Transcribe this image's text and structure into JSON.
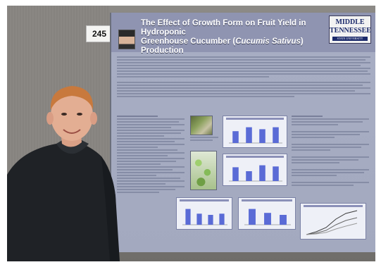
{
  "poster": {
    "number": "245",
    "title_line1": "The Effect of Growth Form on Fruit Yield in Hydroponic",
    "title_line2_prefix": "Greenhouse Cucumber (",
    "title_line2_italic": "Cucumis Sativus",
    "title_line2_suffix": ") Production",
    "logo_line1": "MIDDLE",
    "logo_line2": "TENNESSEE",
    "logo_line3": "STATE UNIVERSITY"
  },
  "colors": {
    "poster_background": "#a8aec4",
    "poster_header": "#8f94b1",
    "chart_bar": "#5a6bd6",
    "shirt": "#1f2226"
  },
  "charts": [
    {
      "values": [
        3,
        4,
        3.5,
        4
      ]
    },
    {
      "values": [
        3.5,
        2.5,
        4,
        3.7
      ]
    },
    {
      "values": [
        4,
        2.8,
        2.5,
        2.8
      ]
    },
    {
      "values": [
        4,
        3,
        2.5
      ]
    }
  ]
}
